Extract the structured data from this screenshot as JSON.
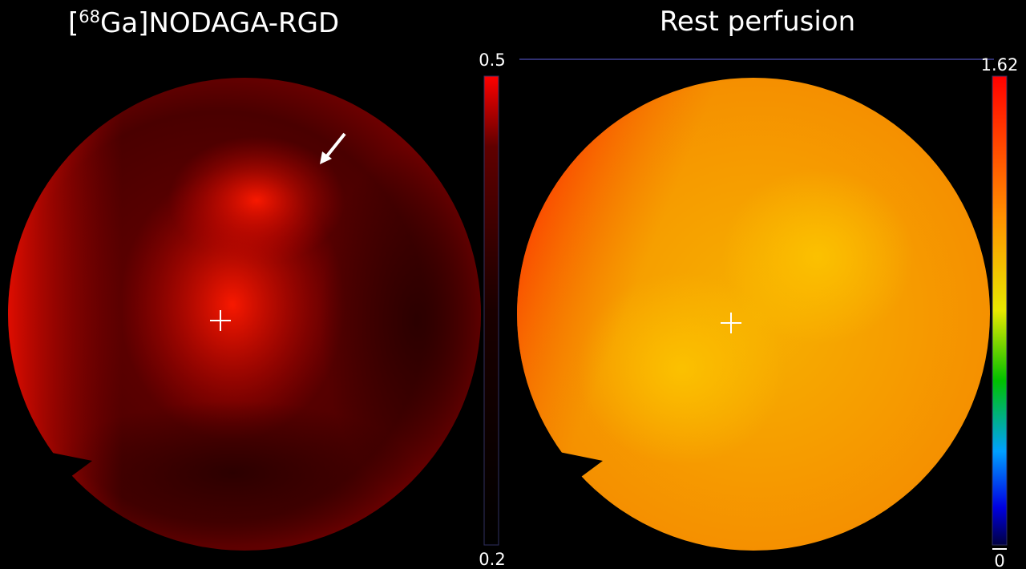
{
  "left_panel": {
    "title": {
      "open": "[",
      "superscript": "68",
      "rest": "Ga]NODAGA-RGD"
    },
    "scale_max": "0.5",
    "scale_min": "0.2"
  },
  "right_panel": {
    "title": "Rest perfusion",
    "scale_max": "1.62",
    "scale_min": "0"
  }
}
